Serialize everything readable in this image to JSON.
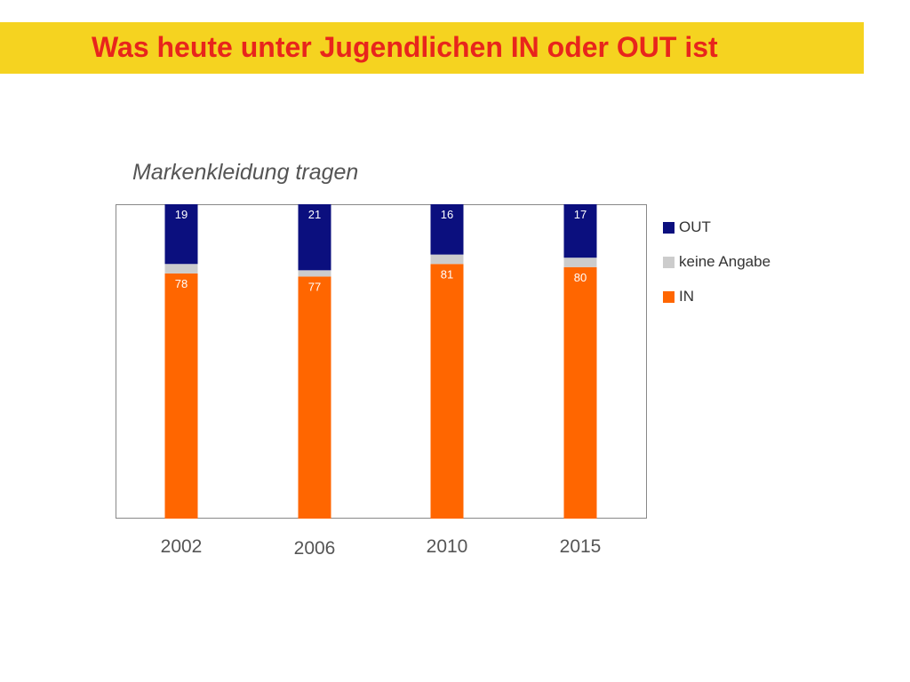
{
  "header": {
    "title": "Was heute unter Jugendlichen IN oder OUT ist"
  },
  "colors": {
    "banner": "#f5d320",
    "title": "#e8251c",
    "out": "#0b0f7e",
    "keine_angabe": "#cccccc",
    "in": "#ff6600"
  },
  "chart_data": {
    "type": "bar",
    "stacked": true,
    "title": "Markenkleidung tragen",
    "xlabel": "",
    "ylabel": "",
    "ylim": [
      0,
      100
    ],
    "grid": false,
    "legend_position": "right",
    "categories": [
      "2002",
      "2006",
      "2010",
      "2015"
    ],
    "series": [
      {
        "name": "IN",
        "color": "#ff6600",
        "values": [
          78,
          77,
          81,
          80
        ],
        "labels": [
          "78",
          "77",
          "81",
          "80"
        ]
      },
      {
        "name": "keine Angabe",
        "color": "#cccccc",
        "values": [
          3,
          2,
          3,
          3
        ]
      },
      {
        "name": "OUT",
        "color": "#0b0f7e",
        "values": [
          19,
          21,
          16,
          17
        ],
        "labels": [
          "19",
          "21",
          "16",
          "17"
        ]
      }
    ],
    "legend": [
      "OUT",
      "keine Angabe",
      "IN"
    ]
  }
}
